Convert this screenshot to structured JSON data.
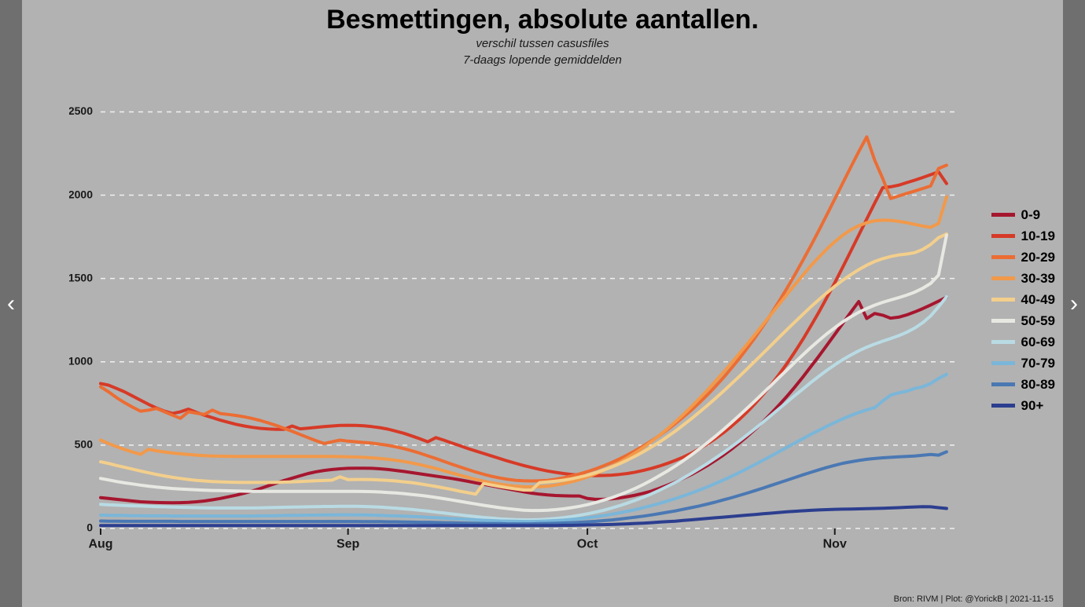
{
  "title": "Besmettingen, absolute aantallen.",
  "subtitle1": "verschil tussen casusfiles",
  "subtitle2": "7-daags lopende gemiddelden",
  "credit": "Bron: RIVM | Plot: @YorickB  |  2021-11-15",
  "nav": {
    "prev_glyph": "‹",
    "next_glyph": "›"
  },
  "colors": {
    "outer_bg": "#808080",
    "side_bar": "#6f6f6f",
    "panel_bg": "#b2b2b2",
    "grid": "#f0f0f0",
    "axis_text": "#1a1a1a",
    "nav_chevron": "#ffffff"
  },
  "chart": {
    "type": "line",
    "x_domain": [
      0,
      107
    ],
    "y_domain": [
      0,
      2700
    ],
    "y_ticks": [
      0,
      500,
      1000,
      1500,
      2000,
      2500
    ],
    "x_ticks": [
      {
        "pos": 0,
        "label": "Aug"
      },
      {
        "pos": 31,
        "label": "Sep"
      },
      {
        "pos": 61,
        "label": "Oct"
      },
      {
        "pos": 92,
        "label": "Nov"
      }
    ],
    "line_width": 4,
    "grid_dash": "6 6",
    "series": [
      {
        "name": "0-9",
        "color": "#a6162f",
        "data": [
          185,
          180,
          175,
          170,
          165,
          160,
          158,
          156,
          155,
          154,
          155,
          157,
          160,
          165,
          172,
          180,
          190,
          200,
          212,
          225,
          240,
          256,
          272,
          288,
          302,
          316,
          330,
          340,
          348,
          354,
          358,
          361,
          362,
          362,
          361,
          358,
          354,
          348,
          342,
          335,
          328,
          321,
          314,
          307,
          300,
          292,
          283,
          274,
          265,
          256,
          247,
          238,
          229,
          220,
          212,
          206,
          201,
          198,
          196,
          195,
          195,
          180,
          175,
          175,
          178,
          183,
          191,
          200,
          211,
          224,
          241,
          259,
          279,
          300,
          323,
          349,
          377,
          407,
          439,
          474,
          512,
          552,
          594,
          640,
          689,
          740,
          793,
          849,
          909,
          971,
          1034,
          1099,
          1165,
          1231,
          1297,
          1362,
          1260,
          1290,
          1280,
          1262,
          1268,
          1281,
          1299,
          1319,
          1341,
          1364,
          1387
        ]
      },
      {
        "name": "10-19",
        "color": "#d63a27",
        "data": [
          870,
          860,
          840,
          820,
          795,
          770,
          745,
          723,
          704,
          690,
          700,
          716,
          697,
          680,
          665,
          650,
          637,
          625,
          615,
          607,
          601,
          597,
          595,
          595,
          615,
          598,
          602,
          607,
          611,
          615,
          618,
          619,
          618,
          616,
          611,
          605,
          596,
          584,
          571,
          555,
          538,
          520,
          545,
          530,
          513,
          497,
          480,
          465,
          450,
          435,
          420,
          405,
          391,
          378,
          366,
          355,
          345,
          337,
          330,
          324,
          320,
          318,
          317,
          318,
          320,
          324,
          330,
          338,
          348,
          360,
          374,
          390,
          408,
          428,
          451,
          477,
          506,
          538,
          573,
          611,
          653,
          699,
          749,
          803,
          861,
          923,
          989,
          1060,
          1135,
          1215,
          1298,
          1385,
          1475,
          1568,
          1664,
          1760,
          1857,
          1952,
          2045,
          2050,
          2060,
          2075,
          2090,
          2106,
          2123,
          2140,
          2070
        ]
      },
      {
        "name": "20-29",
        "color": "#eb6d34",
        "data": [
          850,
          820,
          785,
          755,
          728,
          704,
          710,
          720,
          700,
          680,
          661,
          700,
          692,
          684,
          710,
          690,
          684,
          678,
          670,
          660,
          648,
          634,
          618,
          601,
          583,
          564,
          545,
          527,
          510,
          520,
          530,
          524,
          520,
          516,
          512,
          506,
          499,
          490,
          479,
          466,
          452,
          436,
          420,
          403,
          386,
          370,
          354,
          339,
          325,
          313,
          303,
          295,
          289,
          286,
          285,
          286,
          289,
          295,
          304,
          315,
          327,
          341,
          357,
          375,
          395,
          417,
          441,
          467,
          495,
          525,
          557,
          592,
          629,
          668,
          709,
          753,
          800,
          850,
          903,
          959,
          1018,
          1080,
          1145,
          1214,
          1286,
          1362,
          1441,
          1523,
          1609,
          1697,
          1788,
          1882,
          1977,
          2073,
          2168,
          2261,
          2350,
          2210,
          2100,
          1980,
          1995,
          2010,
          2025,
          2040,
          2055,
          2160,
          2180
        ]
      },
      {
        "name": "30-39",
        "color": "#f2994a",
        "data": [
          530,
          510,
          491,
          474,
          459,
          445,
          475,
          466,
          459,
          453,
          448,
          444,
          440,
          437,
          435,
          434,
          433,
          432,
          432,
          432,
          432,
          432,
          432,
          432,
          432,
          432,
          432,
          432,
          432,
          432,
          431,
          430,
          429,
          427,
          424,
          420,
          415,
          409,
          402,
          393,
          383,
          372,
          360,
          347,
          333,
          320,
          307,
          295,
          284,
          274,
          266,
          259,
          254,
          251,
          250,
          251,
          254,
          260,
          269,
          280,
          293,
          309,
          327,
          348,
          371,
          396,
          424,
          454,
          486,
          521,
          558,
          597,
          639,
          683,
          729,
          778,
          828,
          881,
          935,
          990,
          1047,
          1105,
          1164,
          1224,
          1284,
          1344,
          1404,
          1463,
          1520,
          1576,
          1628,
          1677,
          1721,
          1760,
          1792,
          1817,
          1835,
          1846,
          1850,
          1849,
          1843,
          1835,
          1825,
          1815,
          1807,
          1830,
          1990
        ]
      },
      {
        "name": "40-49",
        "color": "#f3cf8c",
        "data": [
          400,
          390,
          378,
          367,
          356,
          345,
          334,
          324,
          315,
          307,
          300,
          294,
          289,
          285,
          282,
          280,
          278,
          277,
          276,
          276,
          276,
          276,
          277,
          278,
          280,
          282,
          284,
          286,
          288,
          290,
          310,
          293,
          294,
          294,
          293,
          291,
          289,
          285,
          280,
          275,
          268,
          260,
          252,
          243,
          234,
          224,
          215,
          206,
          270,
          261,
          252,
          244,
          237,
          231,
          230,
          275,
          279,
          284,
          290,
          298,
          308,
          320,
          334,
          350,
          368,
          388,
          410,
          434,
          460,
          488,
          518,
          550,
          584,
          620,
          658,
          697,
          737,
          779,
          822,
          866,
          911,
          957,
          1004,
          1051,
          1098,
          1146,
          1193,
          1239,
          1285,
          1330,
          1373,
          1414,
          1453,
          1490,
          1523,
          1553,
          1580,
          1602,
          1619,
          1632,
          1641,
          1647,
          1655,
          1674,
          1704,
          1745,
          1767
        ]
      },
      {
        "name": "50-59",
        "color": "#e8e8e3",
        "data": [
          300,
          291,
          282,
          274,
          267,
          260,
          254,
          249,
          244,
          240,
          237,
          234,
          232,
          230,
          228,
          227,
          226,
          225,
          224,
          223,
          223,
          223,
          223,
          223,
          223,
          223,
          223,
          223,
          223,
          223,
          223,
          223,
          223,
          222,
          221,
          219,
          216,
          213,
          209,
          204,
          199,
          193,
          186,
          179,
          171,
          163,
          155,
          147,
          139,
          132,
          125,
          119,
          114,
          110,
          108,
          108,
          110,
          113,
          118,
          125,
          133,
          143,
          155,
          169,
          184,
          201,
          220,
          241,
          264,
          289,
          316,
          344,
          374,
          406,
          440,
          476,
          513,
          552,
          592,
          634,
          677,
          721,
          766,
          812,
          858,
          905,
          951,
          997,
          1042,
          1086,
          1128,
          1168,
          1205,
          1240,
          1270,
          1297,
          1320,
          1340,
          1357,
          1371,
          1385,
          1400,
          1418,
          1441,
          1470,
          1520,
          1760
        ]
      },
      {
        "name": "60-69",
        "color": "#b9dbe4",
        "data": [
          145,
          142,
          140,
          138,
          136,
          135,
          133,
          131,
          130,
          128,
          127,
          126,
          125,
          124,
          123,
          123,
          123,
          123,
          123,
          123,
          124,
          125,
          126,
          127,
          128,
          129,
          130,
          131,
          132,
          132,
          133,
          133,
          133,
          132,
          130,
          128,
          125,
          122,
          118,
          114,
          109,
          104,
          98,
          93,
          87,
          82,
          76,
          71,
          66,
          62,
          58,
          55,
          53,
          52,
          52,
          53,
          56,
          60,
          65,
          71,
          79,
          88,
          98,
          109,
          122,
          136,
          152,
          169,
          187,
          207,
          229,
          252,
          276,
          302,
          330,
          359,
          389,
          421,
          454,
          488,
          524,
          561,
          599,
          638,
          678,
          718,
          758,
          798,
          837,
          876,
          913,
          949,
          982,
          1013,
          1041,
          1066,
          1088,
          1107,
          1124,
          1140,
          1157,
          1177,
          1202,
          1234,
          1275,
          1330,
          1390
        ]
      },
      {
        "name": "70-79",
        "color": "#7ab6d9",
        "data": [
          80,
          79,
          78,
          78,
          77,
          77,
          76,
          76,
          76,
          75,
          75,
          75,
          75,
          75,
          75,
          75,
          75,
          75,
          75,
          75,
          76,
          76,
          77,
          78,
          78,
          79,
          80,
          80,
          81,
          81,
          82,
          82,
          81,
          81,
          80,
          79,
          77,
          76,
          74,
          72,
          70,
          67,
          65,
          62,
          59,
          57,
          54,
          52,
          49,
          47,
          45,
          44,
          43,
          42,
          42,
          43,
          45,
          47,
          50,
          54,
          59,
          64,
          70,
          77,
          85,
          94,
          103,
          113,
          125,
          137,
          150,
          164,
          179,
          195,
          212,
          230,
          249,
          269,
          290,
          312,
          335,
          359,
          384,
          409,
          435,
          461,
          487,
          513,
          539,
          565,
          589,
          613,
          636,
          658,
          678,
          696,
          712,
          725,
          765,
          800,
          814,
          823,
          840,
          850,
          870,
          900,
          925
        ]
      },
      {
        "name": "80-89",
        "color": "#4a78b3",
        "data": [
          45,
          44,
          44,
          43,
          43,
          43,
          43,
          43,
          43,
          43,
          42,
          42,
          42,
          42,
          42,
          42,
          42,
          42,
          42,
          42,
          42,
          42,
          42,
          42,
          42,
          42,
          42,
          42,
          42,
          42,
          42,
          42,
          42,
          41,
          41,
          41,
          40,
          40,
          39,
          38,
          37,
          37,
          36,
          35,
          34,
          33,
          32,
          31,
          30,
          29,
          29,
          28,
          28,
          28,
          28,
          29,
          30,
          31,
          33,
          35,
          37,
          40,
          43,
          47,
          51,
          56,
          62,
          68,
          74,
          81,
          89,
          97,
          105,
          115,
          125,
          135,
          146,
          158,
          171,
          184,
          198,
          212,
          227,
          242,
          258,
          274,
          290,
          306,
          322,
          337,
          352,
          366,
          379,
          391,
          400,
          408,
          415,
          420,
          424,
          427,
          430,
          432,
          435,
          439,
          444,
          440,
          460
        ]
      },
      {
        "name": "90+",
        "color": "#2c3e8f",
        "data": [
          18,
          18,
          18,
          18,
          18,
          18,
          18,
          18,
          18,
          18,
          18,
          18,
          18,
          18,
          18,
          18,
          18,
          18,
          18,
          18,
          18,
          18,
          18,
          18,
          18,
          18,
          18,
          18,
          18,
          18,
          18,
          18,
          18,
          18,
          18,
          18,
          18,
          18,
          18,
          18,
          18,
          18,
          18,
          18,
          18,
          18,
          18,
          18,
          18,
          18,
          18,
          18,
          18,
          18,
          18,
          18,
          18,
          18,
          19,
          19,
          20,
          21,
          22,
          23,
          24,
          26,
          28,
          30,
          32,
          35,
          38,
          41,
          44,
          48,
          52,
          56,
          60,
          64,
          68,
          72,
          76,
          80,
          84,
          88,
          92,
          96,
          100,
          103,
          106,
          109,
          111,
          113,
          115,
          116,
          117,
          118,
          119,
          120,
          121,
          123,
          125,
          127,
          129,
          131,
          130,
          125,
          120
        ]
      }
    ]
  }
}
